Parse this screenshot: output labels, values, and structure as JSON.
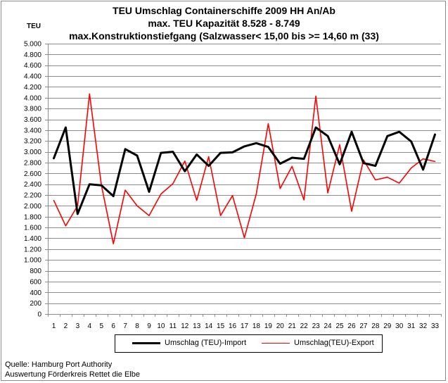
{
  "chart_data": {
    "type": "line",
    "title_lines": [
      "TEU Umschlag Containerschiffe 2009 HH An/Ab",
      "max. TEU Kapazität  8.528 - 8.749",
      "max.Konstruktionstiefgang (Salzwasser< 15,00 bis >= 14,60 m (33)"
    ],
    "ylabel": "TEU",
    "xlabel": "",
    "ylim": [
      0,
      5000
    ],
    "y_ticks": [
      0,
      200,
      400,
      600,
      800,
      1000,
      1200,
      1400,
      1600,
      1800,
      2000,
      2200,
      2400,
      2600,
      2800,
      3000,
      3200,
      3400,
      3600,
      3800,
      4000,
      4200,
      4400,
      4600,
      4800,
      5000
    ],
    "y_tick_labels": [
      "0",
      "200",
      "400",
      "600",
      "800",
      "1.000",
      "1.200",
      "1.400",
      "1.600",
      "1.800",
      "2.000",
      "2.200",
      "2.400",
      "2.600",
      "2.800",
      "3.000",
      "3.200",
      "3.400",
      "3.600",
      "3.800",
      "4.000",
      "4.200",
      "4.400",
      "4.600",
      "4.800",
      "5.000"
    ],
    "categories": [
      "1",
      "2",
      "3",
      "4",
      "5",
      "6",
      "7",
      "8",
      "9",
      "10",
      "11",
      "12",
      "13",
      "14",
      "15",
      "16",
      "17",
      "18",
      "19",
      "20",
      "21",
      "22",
      "23",
      "24",
      "25",
      "26",
      "27",
      "28",
      "29",
      "30",
      "31",
      "32",
      "33"
    ],
    "grid": true,
    "legend_position": "bottom",
    "series": [
      {
        "name": "Umschlag (TEU)-Import",
        "color": "#000000",
        "values": [
          2880,
          3450,
          1850,
          2400,
          2380,
          2180,
          3050,
          2930,
          2260,
          2980,
          3000,
          2640,
          2950,
          2740,
          2980,
          2990,
          3100,
          3160,
          3090,
          2780,
          2890,
          2870,
          3450,
          3290,
          2770,
          3370,
          2790,
          2740,
          3290,
          3370,
          3190,
          2670,
          3320
        ]
      },
      {
        "name": "Umschlag(TEU)-Export",
        "color": "#ff0000",
        "values": [
          2100,
          1630,
          2000,
          4070,
          2380,
          1300,
          2290,
          2000,
          1820,
          2220,
          2410,
          2830,
          2100,
          2910,
          1820,
          2190,
          1410,
          2220,
          3520,
          2320,
          2730,
          2110,
          4030,
          2240,
          3130,
          1900,
          2850,
          2480,
          2530,
          2420,
          2700,
          2870,
          2820
        ]
      }
    ]
  },
  "source": {
    "line1": "Quelle: Hamburg Port Authority",
    "line2": "Auswertung Förderkreis Rettet die Elbe"
  }
}
